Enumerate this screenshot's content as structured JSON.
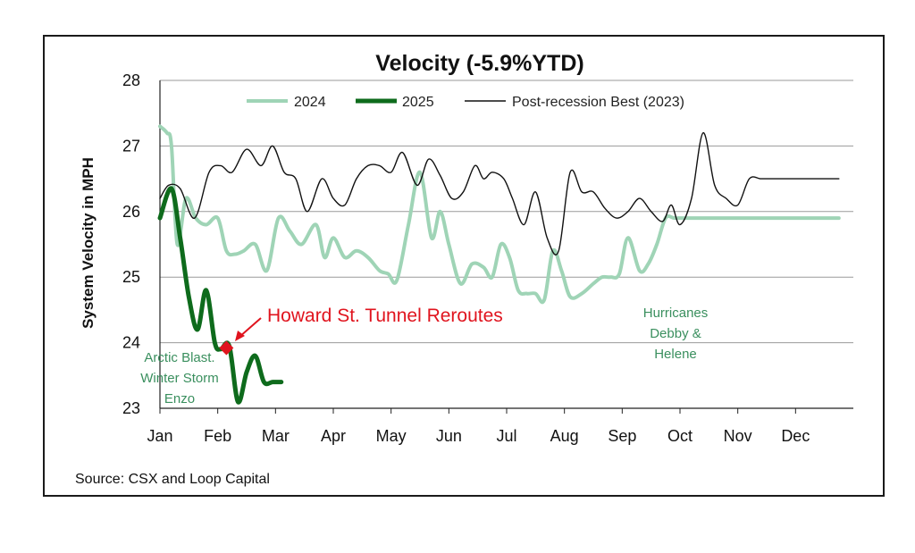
{
  "chart_data": {
    "type": "line",
    "title": "Velocity (-5.9%YTD)",
    "ylabel": "System Velocity in MPH",
    "xlabel": "",
    "ylim": [
      23,
      28
    ],
    "yticks": [
      23,
      24,
      25,
      26,
      27,
      28
    ],
    "x_range": [
      0,
      12
    ],
    "categories": [
      "Jan",
      "Feb",
      "Mar",
      "Apr",
      "May",
      "Jun",
      "Jul",
      "Aug",
      "Sep",
      "Oct",
      "Nov",
      "Dec"
    ],
    "grid": true,
    "legend": {
      "placement": "top"
    },
    "series": [
      {
        "name": "2024",
        "color": "#9fd4b6",
        "width": 4,
        "x": [
          0,
          0.12,
          0.2,
          0.3,
          0.45,
          0.62,
          0.8,
          1.0,
          1.15,
          1.3,
          1.45,
          1.65,
          1.85,
          2.05,
          2.25,
          2.45,
          2.7,
          2.85,
          3.0,
          3.2,
          3.4,
          3.6,
          3.8,
          3.95,
          4.1,
          4.3,
          4.5,
          4.7,
          4.85,
          5.0,
          5.2,
          5.4,
          5.6,
          5.75,
          5.9,
          6.05,
          6.2,
          6.35,
          6.5,
          6.65,
          6.8,
          6.95,
          7.1,
          7.3,
          7.5,
          7.65,
          7.8,
          7.95,
          8.1,
          8.3,
          8.45,
          8.6,
          8.75,
          8.9,
          9.05,
          9.25,
          9.45,
          9.6,
          9.75,
          9.9,
          10.1,
          10.3,
          10.5,
          10.7,
          10.85,
          11.0,
          11.15,
          11.3,
          11.45,
          11.6,
          11.75
        ],
        "values": [
          27.3,
          27.2,
          27.0,
          25.5,
          26.2,
          25.9,
          25.8,
          25.9,
          25.4,
          25.35,
          25.4,
          25.5,
          25.1,
          25.9,
          25.7,
          25.5,
          25.8,
          25.3,
          25.6,
          25.3,
          25.4,
          25.3,
          25.1,
          25.05,
          24.95,
          25.8,
          26.6,
          25.6,
          26.0,
          25.5,
          24.9,
          25.2,
          25.15,
          25.0,
          25.5,
          25.3,
          24.8,
          24.75,
          24.75,
          24.65,
          25.4,
          25.1,
          24.7,
          24.75,
          24.9,
          25.0,
          25.0,
          25.05,
          25.6,
          25.1,
          25.2,
          25.5,
          25.9,
          25.9,
          25.9,
          25.9,
          25.9,
          25.9,
          25.9,
          25.9,
          25.9,
          25.9,
          25.9,
          25.9,
          25.9,
          25.9,
          25.9,
          25.9,
          25.9,
          25.9,
          25.9
        ]
      },
      {
        "name": "2025",
        "color": "#0e6b1c",
        "width": 5,
        "x": [
          0,
          0.2,
          0.35,
          0.5,
          0.65,
          0.8,
          0.95,
          1.05,
          1.2,
          1.35,
          1.5,
          1.65,
          1.8,
          1.95,
          2.1
        ],
        "values": [
          25.9,
          26.35,
          25.6,
          24.7,
          24.2,
          24.8,
          24.0,
          23.9,
          23.95,
          23.1,
          23.55,
          23.8,
          23.4,
          23.4,
          23.4
        ]
      },
      {
        "name": "Post-recession Best (2023)",
        "color": "#111111",
        "width": 1.4,
        "x": [
          0,
          0.15,
          0.35,
          0.6,
          0.85,
          1.05,
          1.25,
          1.5,
          1.75,
          1.95,
          2.15,
          2.35,
          2.55,
          2.8,
          3.0,
          3.2,
          3.4,
          3.6,
          3.8,
          4.0,
          4.2,
          4.45,
          4.65,
          4.85,
          5.05,
          5.25,
          5.45,
          5.6,
          5.75,
          5.95,
          6.1,
          6.3,
          6.5,
          6.7,
          6.9,
          7.1,
          7.3,
          7.5,
          7.7,
          7.9,
          8.1,
          8.3,
          8.5,
          8.7,
          8.85,
          9.0,
          9.2,
          9.4,
          9.6,
          9.8,
          10.0,
          10.2,
          10.4,
          10.6,
          10.8,
          11.0,
          11.2,
          11.4,
          11.6,
          11.75
        ],
        "values": [
          26.2,
          26.4,
          26.35,
          25.9,
          26.6,
          26.7,
          26.6,
          26.95,
          26.7,
          27.0,
          26.6,
          26.5,
          26.0,
          26.5,
          26.2,
          26.1,
          26.5,
          26.7,
          26.7,
          26.6,
          26.9,
          26.4,
          26.8,
          26.55,
          26.2,
          26.3,
          26.7,
          26.5,
          26.6,
          26.5,
          26.2,
          25.8,
          26.3,
          25.6,
          25.4,
          26.6,
          26.3,
          26.3,
          26.05,
          25.9,
          26.0,
          26.2,
          26.0,
          25.85,
          26.1,
          25.8,
          26.2,
          27.2,
          26.4,
          26.2,
          26.1,
          26.5,
          26.5,
          26.5,
          26.5,
          26.5,
          26.5,
          26.5,
          26.5,
          26.5
        ]
      }
    ],
    "annotations": [
      {
        "lines": [
          "Arctic Blast.",
          "Winter Storm",
          "Enzo"
        ],
        "color": "#3a8f5e"
      },
      {
        "lines": [
          "Howard St. Tunnel Reroutes"
        ],
        "color": "#e0141e"
      },
      {
        "lines": [
          "Hurricanes",
          "Debby &",
          "Helene"
        ],
        "color": "#3a8f5e"
      }
    ],
    "marker": {
      "series": "2025",
      "x": 1.15,
      "value": 23.92,
      "shape": "diamond",
      "color": "#e0141e"
    },
    "source": "Source: CSX and Loop Capital"
  }
}
